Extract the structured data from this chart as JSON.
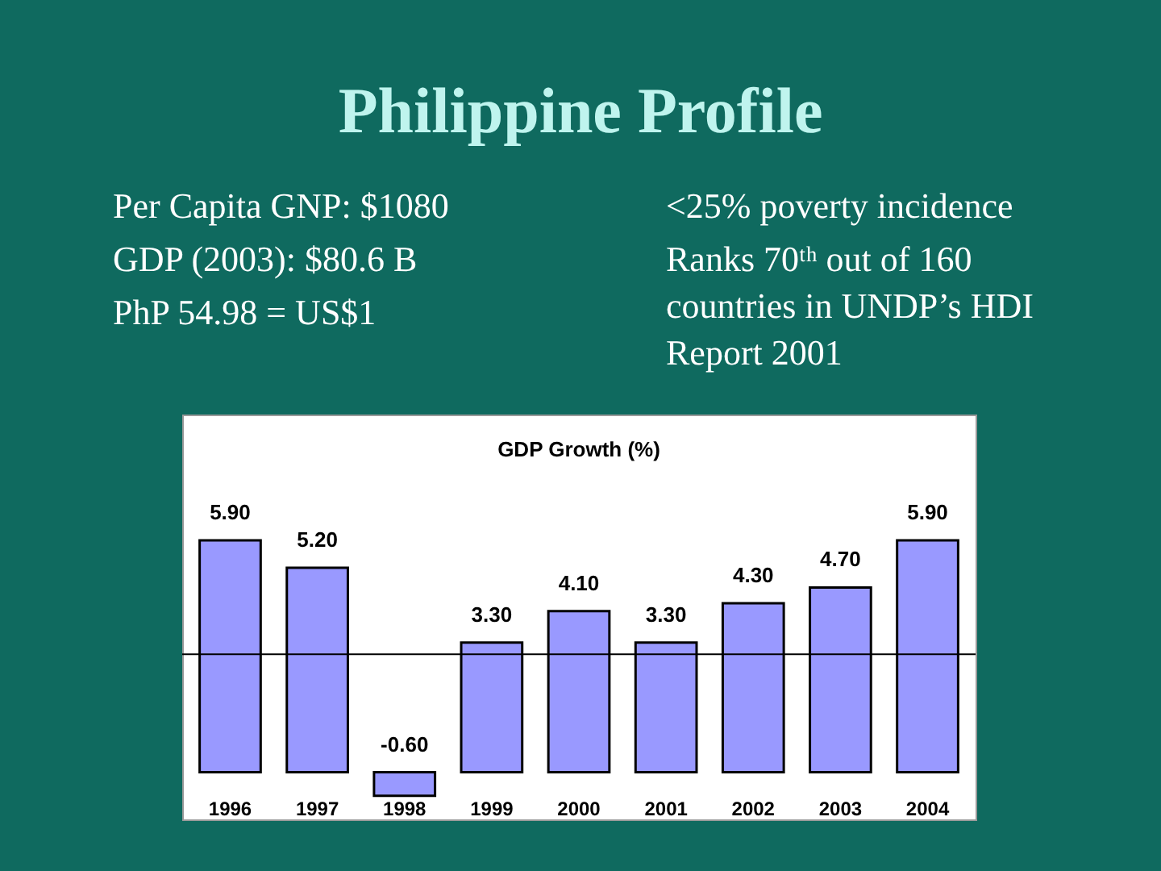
{
  "chart_data": {
    "type": "bar",
    "title": "Philippine Profile",
    "subtitle": "GDP Growth (%)",
    "annotations": [
      "Per Capita GNP: $1080",
      "GDP (2003): $80.6 B",
      "PhP 54.98 = US$1",
      "<25% poverty incidence",
      "Ranks 70ᵗʰ out of 160 countries in UNDP’s HDI Report 2001"
    ],
    "categories": [
      "1996",
      "1997",
      "1998",
      "1999",
      "2000",
      "2001",
      "2002",
      "2003",
      "2004"
    ],
    "values": [
      5.9,
      5.2,
      -0.6,
      3.3,
      4.1,
      3.3,
      4.3,
      4.7,
      5.9
    ],
    "value_labels": [
      "5.90",
      "5.20",
      "-0.60",
      "3.30",
      "4.10",
      "3.30",
      "4.30",
      "4.70",
      "5.90"
    ],
    "color": "#9999ff",
    "ylim": [
      -1.2,
      9.1
    ],
    "tick_labels": "x",
    "ref_lines": [
      {
        "axis": "y",
        "value": 3.0,
        "color": "#000000"
      }
    ]
  }
}
